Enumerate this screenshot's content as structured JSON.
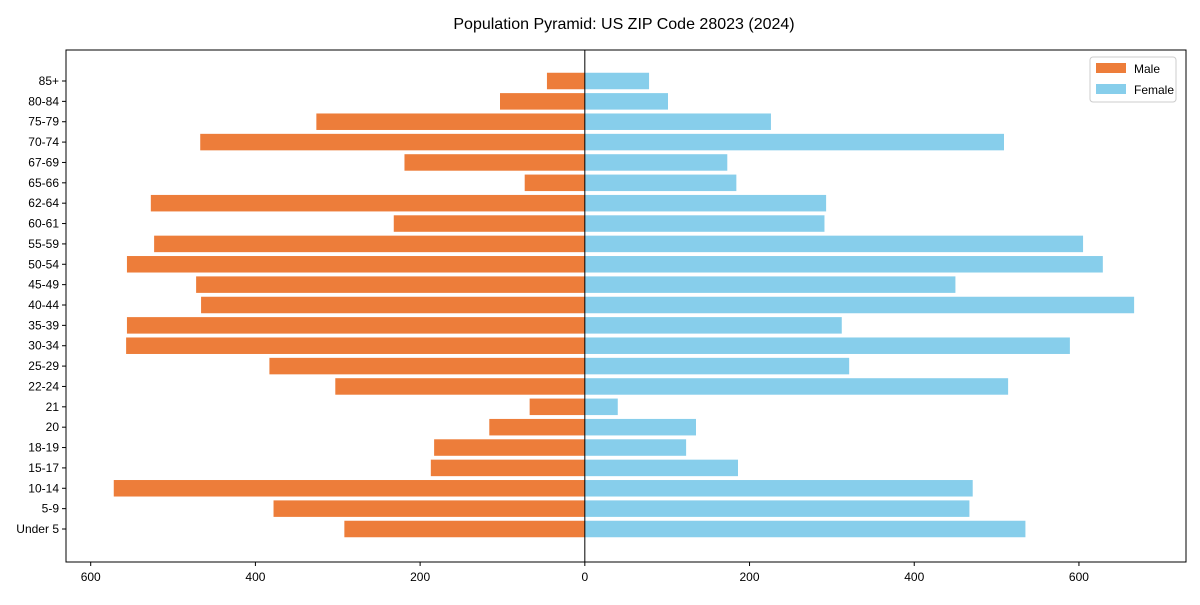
{
  "chart_data": {
    "type": "bar",
    "orientation": "horizontal",
    "title": "Population Pyramid: US ZIP Code 28023 (2024)",
    "xlabel": "",
    "ylabel": "",
    "xlim": [
      -630,
      730
    ],
    "xticks": [
      -600,
      -400,
      -200,
      0,
      200,
      400,
      600
    ],
    "xtick_labels": [
      "600",
      "400",
      "200",
      "0",
      "200",
      "400",
      "600"
    ],
    "legend_position": "top-right",
    "categories": [
      "85+",
      "80-84",
      "75-79",
      "70-74",
      "67-69",
      "65-66",
      "62-64",
      "60-61",
      "55-59",
      "50-54",
      "45-49",
      "40-44",
      "35-39",
      "30-34",
      "25-29",
      "22-24",
      "21",
      "20",
      "18-19",
      "15-17",
      "10-14",
      "5-9",
      "Under 5"
    ],
    "series": [
      {
        "name": "Male",
        "color": "#ED7D3A",
        "values": [
          46,
          103,
          326,
          467,
          219,
          73,
          527,
          232,
          523,
          556,
          472,
          466,
          556,
          557,
          383,
          303,
          67,
          116,
          183,
          187,
          572,
          378,
          292
        ]
      },
      {
        "name": "Female",
        "color": "#87CEEB",
        "values": [
          78,
          101,
          226,
          509,
          173,
          184,
          293,
          291,
          605,
          629,
          450,
          667,
          312,
          589,
          321,
          514,
          40,
          135,
          123,
          186,
          471,
          467,
          535
        ]
      }
    ]
  }
}
